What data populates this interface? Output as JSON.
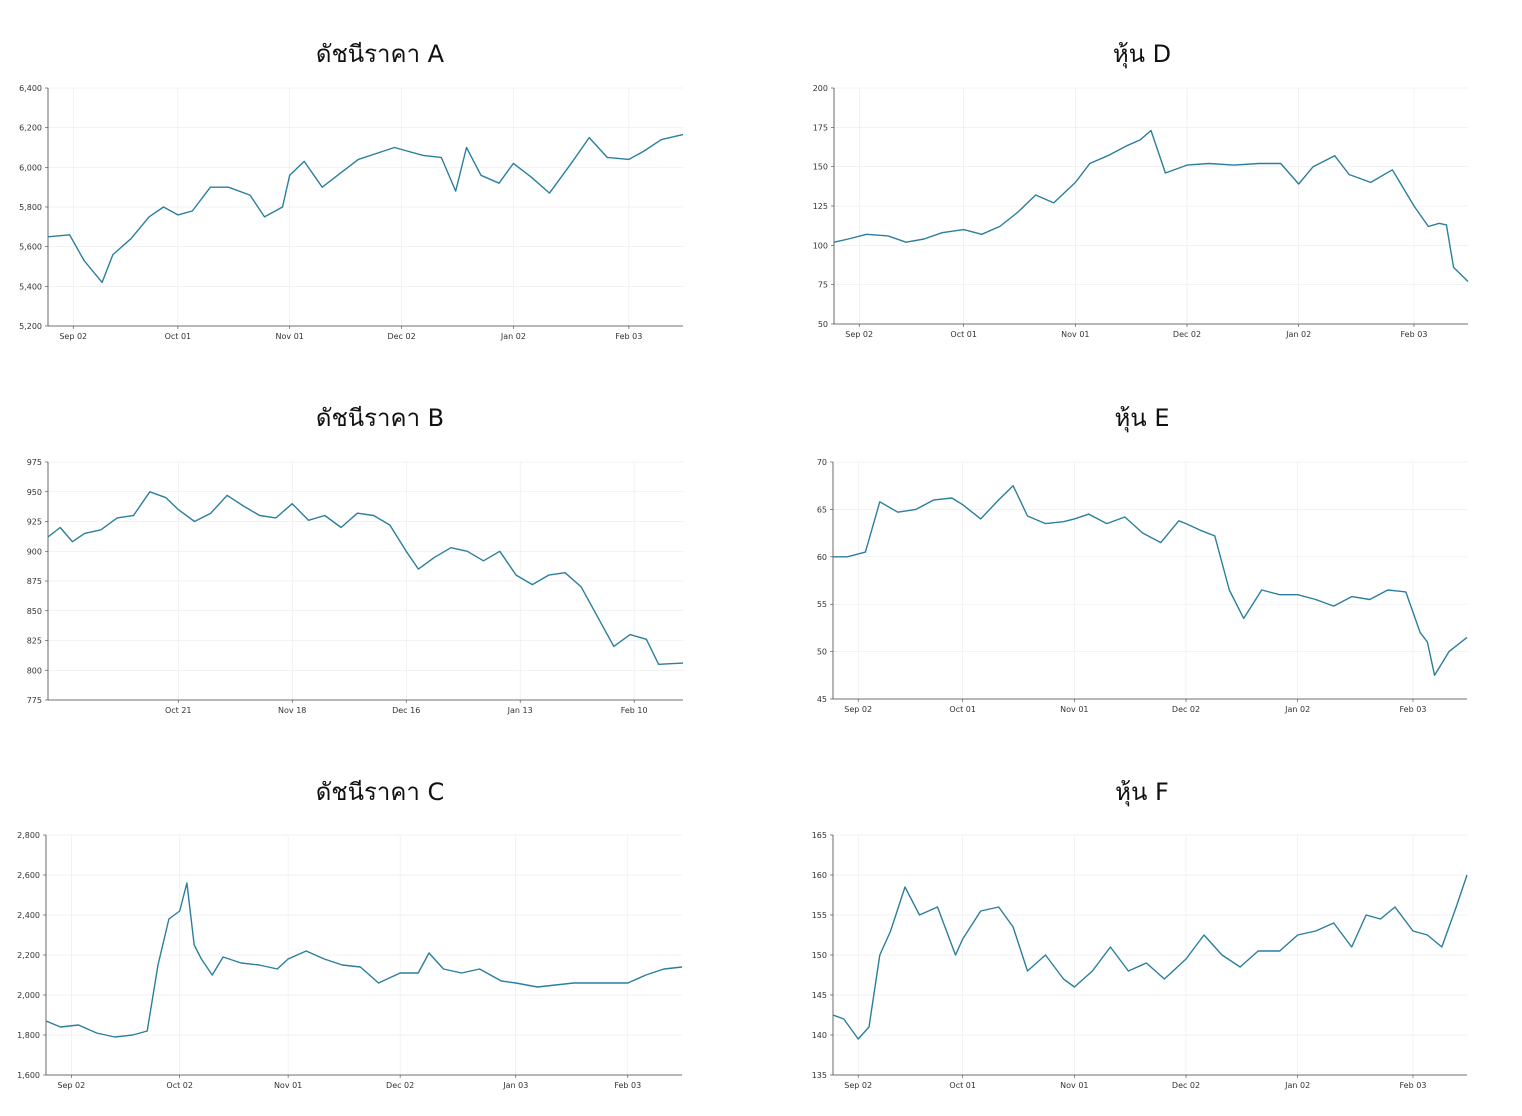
{
  "colors": {
    "line": "#2a7f9e",
    "grid": "#e6e6e6",
    "axis": "#444444"
  },
  "chart_data": [
    {
      "id": "a",
      "type": "line",
      "title": "ดัชนีราคา A",
      "xlim": [
        "2024-08-26",
        "2025-02-18"
      ],
      "ylim": [
        5200,
        6400
      ],
      "yticks": [
        5200,
        5400,
        5600,
        5800,
        6000,
        6200,
        6400
      ],
      "ytick_labels": [
        "5,200",
        "5,400",
        "5,600",
        "5,800",
        "6,000",
        "6,200",
        "6,400"
      ],
      "xticks": [
        "2024-09-02",
        "2024-10-01",
        "2024-11-01",
        "2024-12-02",
        "2025-01-02",
        "2025-02-03"
      ],
      "xtick_labels": [
        "Sep 02",
        "Oct 01",
        "Nov 01",
        "Dec 02",
        "Jan 02",
        "Feb 03"
      ],
      "grid": true,
      "series": [
        {
          "x": [
            "2024-08-26",
            "2024-09-01",
            "2024-09-05",
            "2024-09-10",
            "2024-09-13",
            "2024-09-18",
            "2024-09-23",
            "2024-09-27",
            "2024-10-01",
            "2024-10-05",
            "2024-10-10",
            "2024-10-15",
            "2024-10-21",
            "2024-10-25",
            "2024-10-30",
            "2024-11-01",
            "2024-11-05",
            "2024-11-10",
            "2024-11-15",
            "2024-11-20",
            "2024-11-25",
            "2024-11-30",
            "2024-12-02",
            "2024-12-08",
            "2024-12-13",
            "2024-12-17",
            "2024-12-20",
            "2024-12-24",
            "2024-12-29",
            "2025-01-02",
            "2025-01-07",
            "2025-01-12",
            "2025-01-18",
            "2025-01-23",
            "2025-01-28",
            "2025-02-03",
            "2025-02-07",
            "2025-02-12",
            "2025-02-18"
          ],
          "y": [
            5650,
            5660,
            5530,
            5420,
            5560,
            5640,
            5750,
            5800,
            5760,
            5780,
            5900,
            5900,
            5860,
            5750,
            5800,
            5960,
            6030,
            5900,
            5970,
            6040,
            6070,
            6100,
            6090,
            6060,
            6050,
            5880,
            6100,
            5960,
            5920,
            6020,
            5950,
            5870,
            6020,
            6150,
            6050,
            6040,
            6080,
            6140,
            6165
          ]
        }
      ]
    },
    {
      "id": "d",
      "type": "line",
      "title": "หุ้น D",
      "xlim": [
        "2024-08-26",
        "2025-02-18"
      ],
      "ylim": [
        50,
        200
      ],
      "yticks": [
        50,
        75,
        100,
        125,
        150,
        175,
        200
      ],
      "ytick_labels": [
        "50",
        "75",
        "100",
        "125",
        "150",
        "175",
        "200"
      ],
      "xticks": [
        "2024-09-02",
        "2024-10-01",
        "2024-11-01",
        "2024-12-02",
        "2025-01-02",
        "2025-02-03"
      ],
      "xtick_labels": [
        "Sep 02",
        "Oct 01",
        "Nov 01",
        "Dec 02",
        "Jan 02",
        "Feb 03"
      ],
      "grid": true,
      "series": [
        {
          "x": [
            "2024-08-26",
            "2024-08-30",
            "2024-09-04",
            "2024-09-10",
            "2024-09-15",
            "2024-09-20",
            "2024-09-25",
            "2024-10-01",
            "2024-10-06",
            "2024-10-11",
            "2024-10-16",
            "2024-10-21",
            "2024-10-26",
            "2024-11-01",
            "2024-11-05",
            "2024-11-10",
            "2024-11-15",
            "2024-11-19",
            "2024-11-22",
            "2024-11-26",
            "2024-12-02",
            "2024-12-08",
            "2024-12-15",
            "2024-12-22",
            "2024-12-28",
            "2025-01-02",
            "2025-01-06",
            "2025-01-12",
            "2025-01-16",
            "2025-01-22",
            "2025-01-28",
            "2025-02-03",
            "2025-02-07",
            "2025-02-10",
            "2025-02-12",
            "2025-02-14",
            "2025-02-18"
          ],
          "y": [
            102,
            104,
            107,
            106,
            102,
            104,
            108,
            110,
            107,
            112,
            121,
            132,
            127,
            140,
            152,
            157,
            163,
            167,
            173,
            146,
            151,
            152,
            151,
            152,
            152,
            139,
            150,
            157,
            145,
            140,
            148,
            125,
            112,
            114,
            113,
            86,
            77
          ]
        }
      ]
    },
    {
      "id": "b",
      "type": "line",
      "title": "ดัชนีราคา B",
      "xlim": [
        "2024-09-19",
        "2025-02-22"
      ],
      "ylim": [
        775,
        975
      ],
      "yticks": [
        775,
        800,
        825,
        850,
        875,
        900,
        925,
        950,
        975
      ],
      "ytick_labels": [
        "775",
        "800",
        "825",
        "850",
        "875",
        "900",
        "925",
        "950",
        "975"
      ],
      "xticks": [
        "2024-10-21",
        "2024-11-18",
        "2024-12-16",
        "2025-01-13",
        "2025-02-10"
      ],
      "xtick_labels": [
        "Oct 21",
        "Nov 18",
        "Dec 16",
        "Jan 13",
        "Feb 10"
      ],
      "grid": true,
      "series": [
        {
          "x": [
            "2024-09-19",
            "2024-09-22",
            "2024-09-25",
            "2024-09-28",
            "2024-10-02",
            "2024-10-06",
            "2024-10-10",
            "2024-10-14",
            "2024-10-18",
            "2024-10-21",
            "2024-10-25",
            "2024-10-29",
            "2024-11-02",
            "2024-11-06",
            "2024-11-10",
            "2024-11-14",
            "2024-11-18",
            "2024-11-22",
            "2024-11-26",
            "2024-11-30",
            "2024-12-04",
            "2024-12-08",
            "2024-12-12",
            "2024-12-16",
            "2024-12-19",
            "2024-12-23",
            "2024-12-27",
            "2024-12-31",
            "2025-01-04",
            "2025-01-08",
            "2025-01-12",
            "2025-01-16",
            "2025-01-20",
            "2025-01-24",
            "2025-01-28",
            "2025-02-01",
            "2025-02-05",
            "2025-02-09",
            "2025-02-13",
            "2025-02-16",
            "2025-02-22"
          ],
          "y": [
            912,
            920,
            908,
            915,
            918,
            928,
            930,
            950,
            945,
            935,
            925,
            932,
            947,
            938,
            930,
            928,
            940,
            926,
            930,
            920,
            932,
            930,
            922,
            900,
            885,
            895,
            903,
            900,
            892,
            900,
            880,
            872,
            880,
            882,
            870,
            845,
            820,
            830,
            826,
            805,
            806
          ]
        }
      ]
    },
    {
      "id": "e",
      "type": "line",
      "title": "หุ้น E",
      "xlim": [
        "2024-08-26",
        "2025-02-18"
      ],
      "ylim": [
        45,
        70
      ],
      "yticks": [
        45,
        50,
        55,
        60,
        65,
        70
      ],
      "ytick_labels": [
        "45",
        "50",
        "55",
        "60",
        "65",
        "70"
      ],
      "xticks": [
        "2024-09-02",
        "2024-10-01",
        "2024-11-01",
        "2024-12-02",
        "2025-01-02",
        "2025-02-03"
      ],
      "xtick_labels": [
        "Sep 02",
        "Oct 01",
        "Nov 01",
        "Dec 02",
        "Jan 02",
        "Feb 03"
      ],
      "grid": true,
      "series": [
        {
          "x": [
            "2024-08-26",
            "2024-08-30",
            "2024-09-04",
            "2024-09-08",
            "2024-09-13",
            "2024-09-18",
            "2024-09-23",
            "2024-09-28",
            "2024-10-01",
            "2024-10-06",
            "2024-10-11",
            "2024-10-15",
            "2024-10-19",
            "2024-10-24",
            "2024-10-29",
            "2024-11-01",
            "2024-11-05",
            "2024-11-10",
            "2024-11-15",
            "2024-11-20",
            "2024-11-25",
            "2024-11-30",
            "2024-12-02",
            "2024-12-06",
            "2024-12-10",
            "2024-12-14",
            "2024-12-18",
            "2024-12-23",
            "2024-12-28",
            "2025-01-02",
            "2025-01-07",
            "2025-01-12",
            "2025-01-17",
            "2025-01-22",
            "2025-01-27",
            "2025-02-01",
            "2025-02-05",
            "2025-02-07",
            "2025-02-09",
            "2025-02-13",
            "2025-02-18"
          ],
          "y": [
            60,
            60,
            60.5,
            65.8,
            64.7,
            65,
            66,
            66.2,
            65.5,
            64,
            66,
            67.5,
            64.3,
            63.5,
            63.7,
            64,
            64.5,
            63.5,
            64.2,
            62.5,
            61.5,
            63.8,
            63.5,
            62.8,
            62.2,
            56.5,
            53.5,
            56.5,
            56,
            56,
            55.5,
            54.8,
            55.8,
            55.5,
            56.5,
            56.3,
            52,
            51,
            47.5,
            50,
            51.5
          ]
        }
      ]
    },
    {
      "id": "c",
      "type": "line",
      "title": "ดัชนีราคา C",
      "xlim": [
        "2024-08-26",
        "2025-02-18"
      ],
      "ylim": [
        1600,
        2800
      ],
      "yticks": [
        1600,
        1800,
        2000,
        2200,
        2400,
        2600,
        2800
      ],
      "ytick_labels": [
        "1,600",
        "1,800",
        "2,000",
        "2,200",
        "2,400",
        "2,600",
        "2,800"
      ],
      "xticks": [
        "2024-09-02",
        "2024-10-02",
        "2024-11-01",
        "2024-12-02",
        "2025-01-03",
        "2025-02-03"
      ],
      "xtick_labels": [
        "Sep 02",
        "Oct 02",
        "Nov 01",
        "Dec 02",
        "Jan 03",
        "Feb 03"
      ],
      "grid": true,
      "series": [
        {
          "x": [
            "2024-08-26",
            "2024-08-30",
            "2024-09-04",
            "2024-09-09",
            "2024-09-14",
            "2024-09-19",
            "2024-09-23",
            "2024-09-26",
            "2024-09-29",
            "2024-10-02",
            "2024-10-04",
            "2024-10-06",
            "2024-10-08",
            "2024-10-11",
            "2024-10-14",
            "2024-10-19",
            "2024-10-24",
            "2024-10-29",
            "2024-11-01",
            "2024-11-06",
            "2024-11-11",
            "2024-11-16",
            "2024-11-21",
            "2024-11-26",
            "2024-12-02",
            "2024-12-07",
            "2024-12-10",
            "2024-12-14",
            "2024-12-19",
            "2024-12-24",
            "2024-12-30",
            "2025-01-03",
            "2025-01-09",
            "2025-01-14",
            "2025-01-19",
            "2025-01-24",
            "2025-01-29",
            "2025-02-03",
            "2025-02-08",
            "2025-02-13",
            "2025-02-18"
          ],
          "y": [
            1870,
            1840,
            1850,
            1810,
            1790,
            1800,
            1820,
            2150,
            2380,
            2420,
            2560,
            2250,
            2180,
            2100,
            2190,
            2160,
            2150,
            2130,
            2180,
            2220,
            2180,
            2150,
            2140,
            2060,
            2110,
            2110,
            2210,
            2130,
            2110,
            2130,
            2070,
            2060,
            2040,
            2050,
            2060,
            2060,
            2060,
            2060,
            2100,
            2130,
            2140
          ]
        }
      ]
    },
    {
      "id": "f",
      "type": "line",
      "title": "หุ้น F",
      "xlim": [
        "2024-08-26",
        "2025-02-18"
      ],
      "ylim": [
        135,
        165
      ],
      "yticks": [
        135,
        140,
        145,
        150,
        155,
        160,
        165
      ],
      "ytick_labels": [
        "135",
        "140",
        "145",
        "150",
        "155",
        "160",
        "165"
      ],
      "xticks": [
        "2024-09-02",
        "2024-10-01",
        "2024-11-01",
        "2024-12-02",
        "2025-01-02",
        "2025-02-03"
      ],
      "xtick_labels": [
        "Sep 02",
        "Oct 01",
        "Nov 01",
        "Dec 02",
        "Jan 02",
        "Feb 03"
      ],
      "grid": true,
      "series": [
        {
          "x": [
            "2024-08-26",
            "2024-08-29",
            "2024-09-02",
            "2024-09-05",
            "2024-09-08",
            "2024-09-11",
            "2024-09-15",
            "2024-09-19",
            "2024-09-24",
            "2024-09-29",
            "2024-10-01",
            "2024-10-06",
            "2024-10-11",
            "2024-10-15",
            "2024-10-19",
            "2024-10-24",
            "2024-10-29",
            "2024-11-01",
            "2024-11-06",
            "2024-11-11",
            "2024-11-16",
            "2024-11-21",
            "2024-11-26",
            "2024-12-02",
            "2024-12-07",
            "2024-12-12",
            "2024-12-17",
            "2024-12-22",
            "2024-12-28",
            "2025-01-02",
            "2025-01-07",
            "2025-01-12",
            "2025-01-17",
            "2025-01-21",
            "2025-01-25",
            "2025-01-29",
            "2025-02-03",
            "2025-02-07",
            "2025-02-11",
            "2025-02-15",
            "2025-02-18"
          ],
          "y": [
            142.5,
            142,
            139.5,
            141,
            150,
            153,
            158.5,
            155,
            156,
            150,
            152,
            155.5,
            156,
            153.5,
            148,
            150,
            147,
            146,
            148,
            151,
            148,
            149,
            147,
            149.5,
            152.5,
            150,
            148.5,
            150.5,
            150.5,
            152.5,
            153,
            154,
            151,
            155,
            154.5,
            156,
            153,
            152.5,
            151,
            156,
            160
          ]
        }
      ]
    }
  ]
}
